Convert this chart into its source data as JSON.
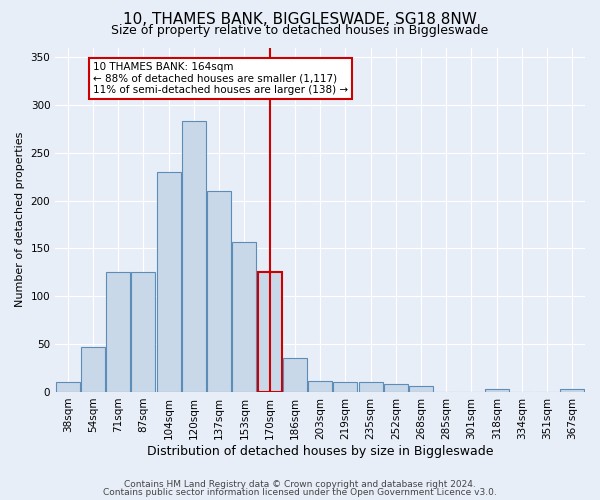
{
  "title": "10, THAMES BANK, BIGGLESWADE, SG18 8NW",
  "subtitle": "Size of property relative to detached houses in Biggleswade",
  "xlabel": "Distribution of detached houses by size in Biggleswade",
  "ylabel": "Number of detached properties",
  "categories": [
    "38sqm",
    "54sqm",
    "71sqm",
    "87sqm",
    "104sqm",
    "120sqm",
    "137sqm",
    "153sqm",
    "170sqm",
    "186sqm",
    "203sqm",
    "219sqm",
    "235sqm",
    "252sqm",
    "268sqm",
    "285sqm",
    "301sqm",
    "318sqm",
    "334sqm",
    "351sqm",
    "367sqm"
  ],
  "values": [
    10,
    47,
    125,
    125,
    230,
    283,
    210,
    157,
    125,
    35,
    11,
    10,
    10,
    8,
    6,
    0,
    0,
    3,
    0,
    0,
    3
  ],
  "highlight_index": 8,
  "bar_color": "#c8d8e8",
  "bar_edge_color": "#5b8db8",
  "highlight_bar_edge_color": "#cc0000",
  "vline_color": "#cc0000",
  "annotation_text": "10 THAMES BANK: 164sqm\n← 88% of detached houses are smaller (1,117)\n11% of semi-detached houses are larger (138) →",
  "annotation_box_color": "#cc0000",
  "background_color": "#e8eef8",
  "grid_color": "#ffffff",
  "ylim": [
    0,
    360
  ],
  "yticks": [
    0,
    50,
    100,
    150,
    200,
    250,
    300,
    350
  ],
  "footer1": "Contains HM Land Registry data © Crown copyright and database right 2024.",
  "footer2": "Contains public sector information licensed under the Open Government Licence v3.0.",
  "title_fontsize": 11,
  "subtitle_fontsize": 9,
  "ylabel_fontsize": 8,
  "xlabel_fontsize": 9,
  "tick_fontsize": 7.5,
  "annotation_fontsize": 7.5,
  "footer_fontsize": 6.5
}
